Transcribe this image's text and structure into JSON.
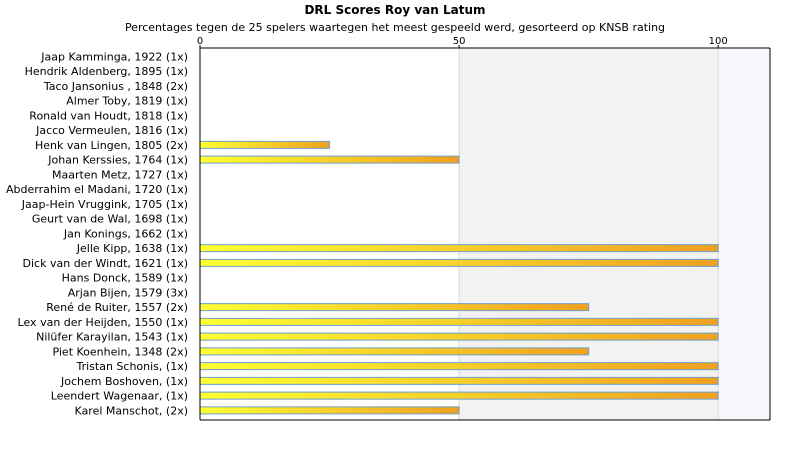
{
  "chart_data": {
    "type": "bar",
    "orientation": "horizontal",
    "title": "DRL Scores Roy van Latum",
    "subtitle": "Percentages tegen de 25 spelers waartegen het meest gespeeld werd, gesorteerd op KNSB rating",
    "categories": [
      "Jaap Kamminga, 1922 (1x)",
      "Hendrik Aldenberg, 1895 (1x)",
      "Taco Jansonius , 1848 (2x)",
      "Almer Toby, 1819 (1x)",
      "Ronald van Houdt, 1818 (1x)",
      "Jacco Vermeulen, 1816 (1x)",
      "Henk van Lingen, 1805 (2x)",
      "Johan Kerssies, 1764 (1x)",
      "Maarten Metz, 1727 (1x)",
      "Abderrahim el Madani, 1720 (1x)",
      "Jaap-Hein Vruggink, 1705 (1x)",
      "Geurt van de Wal, 1698 (1x)",
      "Jan Konings, 1662 (1x)",
      "Jelle Kipp, 1638 (1x)",
      "Dick van der Windt, 1621 (1x)",
      "Hans Donck, 1589 (1x)",
      "Arjan Bijen, 1579 (3x)",
      "René de Ruiter, 1557 (2x)",
      "Lex van der Heijden, 1550 (1x)",
      "Nilüfer Karayilan, 1543 (1x)",
      "Piet Koenhein, 1348 (2x)",
      "Tristan Schonis,  (1x)",
      "Jochem Boshoven,  (1x)",
      "Leendert Wagenaar,  (1x)",
      "Karel Manschot,  (2x)"
    ],
    "values": [
      0,
      0,
      0,
      0,
      0,
      0,
      25,
      50,
      0,
      0,
      0,
      0,
      0,
      100,
      100,
      0,
      0,
      75,
      100,
      100,
      75,
      100,
      100,
      100,
      50
    ],
    "xlim": [
      0,
      110
    ],
    "xticks": [
      0,
      50,
      100
    ],
    "xtick_labels": [
      "0",
      "50",
      "100"
    ],
    "grid": true,
    "legend": "none",
    "colors": {
      "bar_start": "#ffff33",
      "bar_end": "#f0a020",
      "bar_border": "#6fa0c8",
      "band_light": "#ffffff",
      "band_grey": "#f2f2f2",
      "band_end": "#f6f8fc",
      "axis": "#000000",
      "gridline": "#d8d8d8"
    }
  }
}
